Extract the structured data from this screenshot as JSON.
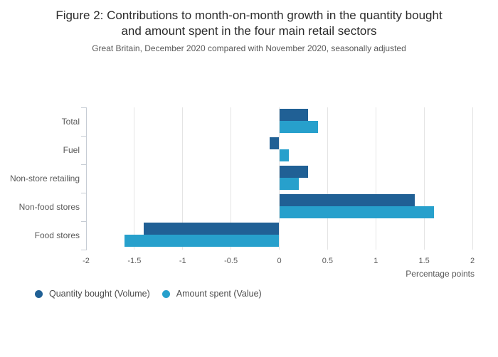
{
  "header": {
    "title_line1": "Figure 2: Contributions to month-on-month growth in the quantity bought",
    "title_line2": "and amount spent in the four main retail sectors",
    "subtitle": "Great Britain, December 2020 compared with November 2020, seasonally adjusted"
  },
  "chart_data": {
    "type": "bar",
    "orientation": "horizontal",
    "title": "Figure 2: Contributions to month-on-month growth in the quantity bought and amount spent in the four main retail sectors",
    "subtitle": "Great Britain, December 2020 compared with November 2020, seasonally adjusted",
    "categories": [
      "Total",
      "Fuel",
      "Non-store retailing",
      "Non-food stores",
      "Food stores"
    ],
    "series": [
      {
        "name": "Quantity bought (Volume)",
        "color": "#206095",
        "values": [
          0.3,
          -0.1,
          0.3,
          1.4,
          -1.4
        ]
      },
      {
        "name": "Amount spent (Value)",
        "color": "#27A0CC",
        "values": [
          0.4,
          0.1,
          0.2,
          1.6,
          -1.6
        ]
      }
    ],
    "xlabel": "Percentage points",
    "xlim": [
      -2,
      2
    ],
    "xticks": [
      "-2",
      "-1.5",
      "-1",
      "-0.5",
      "0",
      "0.5",
      "1",
      "1.5",
      "2"
    ],
    "grid": true,
    "legend_position": "bottom-left"
  },
  "colors": {
    "volume_bar": "#206095",
    "value_bar": "#27A0CC",
    "gridline": "#e4e4e4",
    "axis": "#c6ccd4",
    "muted_text": "#595959",
    "title_text": "#2b2b2b"
  }
}
